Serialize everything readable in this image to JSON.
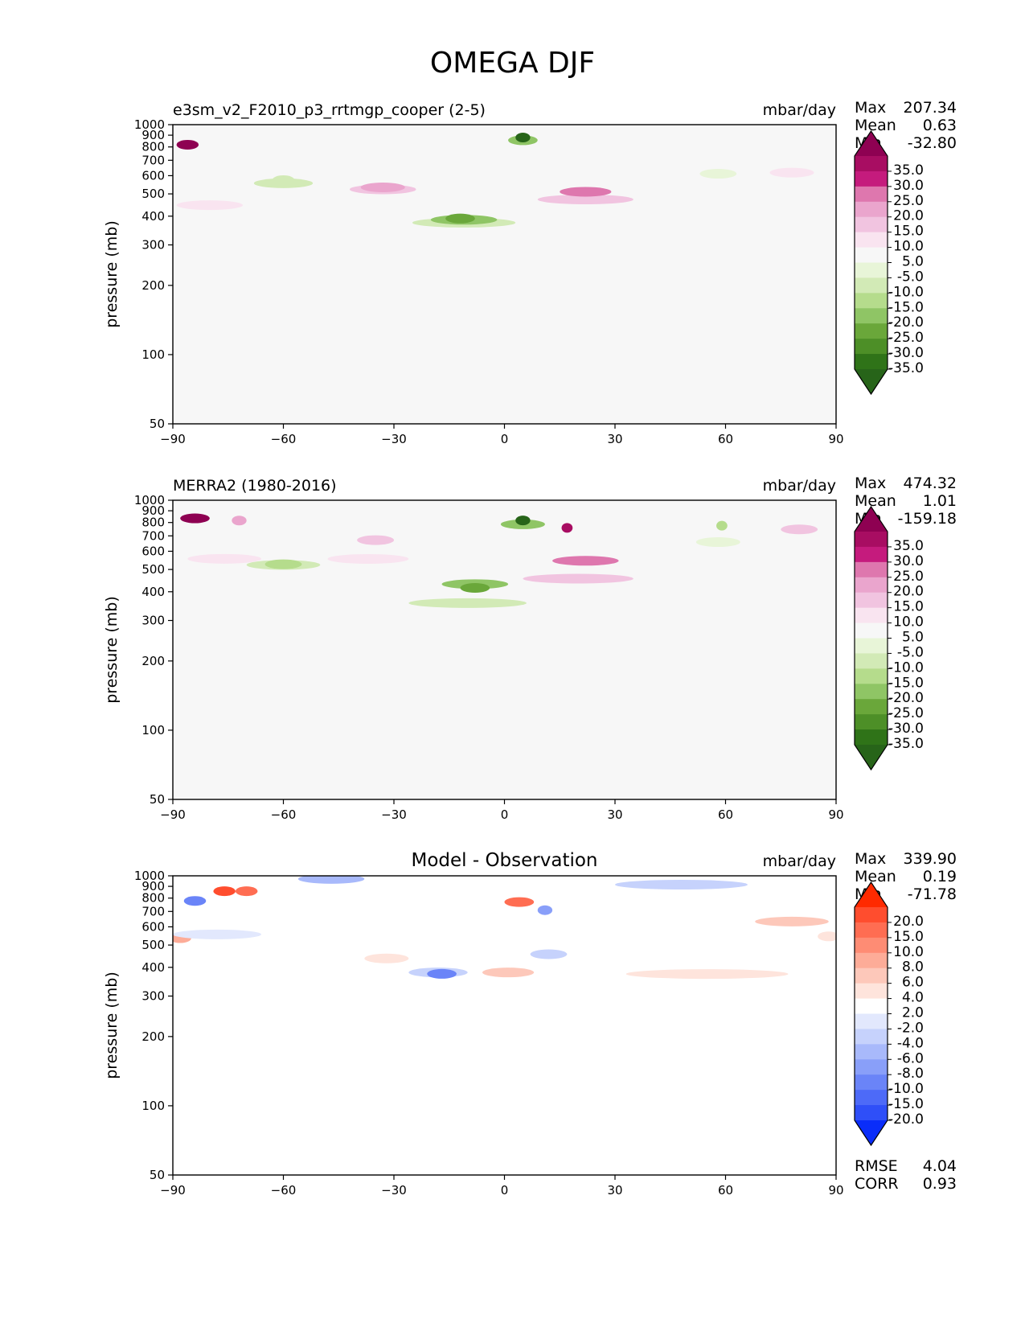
{
  "figure": {
    "title": "OMEGA DJF"
  },
  "chart_data": [
    {
      "type": "heatmap",
      "panel": "test",
      "title": "e3sm_v2_F2010_p3_rrtmgp_cooper (2-5)",
      "units": "mbar/day",
      "xlabel": "",
      "ylabel": "pressure (mb)",
      "xlim": [
        -90,
        90
      ],
      "ylim": [
        1000,
        50
      ],
      "xticks": [
        "−90",
        "−60",
        "−30",
        "0",
        "30",
        "60",
        "90"
      ],
      "yticks": [
        "50",
        "100",
        "200",
        "300",
        "400",
        "500",
        "600",
        "700",
        "800",
        "900",
        "1000"
      ],
      "stats": {
        "max_label": "Max",
        "max": "207.34",
        "mean_label": "Mean",
        "mean": "0.63",
        "min_label": "Min",
        "min": "-32.80"
      },
      "colorbar": {
        "labels": [
          "35.0",
          "30.0",
          "25.0",
          "20.0",
          "15.0",
          "10.0",
          "5.0",
          "-5.0",
          "-10.0",
          "-15.0",
          "-20.0",
          "-25.0",
          "-30.0",
          "-35.0"
        ],
        "colors": [
          "#8e0152",
          "#a80d62",
          "#c51b7d",
          "#de77ae",
          "#eaa5cd",
          "#f1c4e0",
          "#f9e4f0",
          "#f7f7f7",
          "#e8f5d8",
          "#d2eab6",
          "#b5dc8c",
          "#8fc565",
          "#6aa73a",
          "#4d8f27",
          "#2f7318",
          "#276419"
        ]
      },
      "features": [
        {
          "lat": -86,
          "p": 820,
          "value": 40,
          "w": 3,
          "h": 120
        },
        {
          "lat": -80,
          "p": 500,
          "value": 7,
          "w": 9,
          "h": 450
        },
        {
          "lat": -60,
          "p": 600,
          "value": -11,
          "w": 8,
          "h": 450
        },
        {
          "lat": -60,
          "p": 600,
          "value": -15,
          "w": 3,
          "h": 350
        },
        {
          "lat": -33,
          "p": 560,
          "value": 10,
          "w": 9,
          "h": 400
        },
        {
          "lat": -33,
          "p": 560,
          "value": 15,
          "w": 6,
          "h": 340
        },
        {
          "lat": -11,
          "p": 480,
          "value": -12,
          "w": 14,
          "h": 600
        },
        {
          "lat": -11,
          "p": 430,
          "value": -22,
          "w": 9,
          "h": 380
        },
        {
          "lat": -12,
          "p": 400,
          "value": -30,
          "w": 4,
          "h": 170
        },
        {
          "lat": 5,
          "p": 860,
          "value": -25,
          "w": 4,
          "h": 180
        },
        {
          "lat": 5,
          "p": 880,
          "value": -36,
          "w": 2,
          "h": 90
        },
        {
          "lat": 22,
          "p": 560,
          "value": 14,
          "w": 13,
          "h": 600
        },
        {
          "lat": 22,
          "p": 560,
          "value": 23,
          "w": 7,
          "h": 460
        },
        {
          "lat": 58,
          "p": 650,
          "value": -10,
          "w": 5,
          "h": 440
        },
        {
          "lat": 78,
          "p": 650,
          "value": 8,
          "w": 6,
          "h": 400
        }
      ]
    },
    {
      "type": "heatmap",
      "panel": "reference",
      "title": "MERRA2 (1980-2016)",
      "units": "mbar/day",
      "xlabel": "",
      "ylabel": "pressure (mb)",
      "xlim": [
        -90,
        90
      ],
      "ylim": [
        1000,
        50
      ],
      "xticks": [
        "−90",
        "−60",
        "−30",
        "0",
        "30",
        "60",
        "90"
      ],
      "yticks": [
        "50",
        "100",
        "200",
        "300",
        "400",
        "500",
        "600",
        "700",
        "800",
        "900",
        "1000"
      ],
      "stats": {
        "max_label": "Max",
        "max": "474.32",
        "mean_label": "Mean",
        "mean": "1.01",
        "min_label": "Min",
        "min": "-159.18"
      },
      "colorbar": {
        "labels": [
          "35.0",
          "30.0",
          "25.0",
          "20.0",
          "15.0",
          "10.0",
          "5.0",
          "-5.0",
          "-10.0",
          "-15.0",
          "-20.0",
          "-25.0",
          "-30.0",
          "-35.0"
        ],
        "colors": [
          "#8e0152",
          "#a80d62",
          "#c51b7d",
          "#de77ae",
          "#eaa5cd",
          "#f1c4e0",
          "#f9e4f0",
          "#f7f7f7",
          "#e8f5d8",
          "#d2eab6",
          "#b5dc8c",
          "#8fc565",
          "#6aa73a",
          "#4d8f27",
          "#2f7318",
          "#276419"
        ]
      },
      "features": [
        {
          "lat": -84,
          "p": 840,
          "value": 40,
          "w": 4,
          "h": 200
        },
        {
          "lat": -76,
          "p": 600,
          "value": 8,
          "w": 10,
          "h": 450
        },
        {
          "lat": -72,
          "p": 820,
          "value": 18,
          "w": 2,
          "h": 160
        },
        {
          "lat": -60,
          "p": 580,
          "value": -12,
          "w": 10,
          "h": 500
        },
        {
          "lat": -60,
          "p": 560,
          "value": -17,
          "w": 5,
          "h": 380
        },
        {
          "lat": -37,
          "p": 620,
          "value": 9,
          "w": 11,
          "h": 550
        },
        {
          "lat": -35,
          "p": 700,
          "value": 14,
          "w": 5,
          "h": 400
        },
        {
          "lat": -10,
          "p": 500,
          "value": -14,
          "w": 16,
          "h": 700
        },
        {
          "lat": -8,
          "p": 480,
          "value": -22,
          "w": 9,
          "h": 420
        },
        {
          "lat": -8,
          "p": 430,
          "value": -30,
          "w": 4,
          "h": 220
        },
        {
          "lat": 5,
          "p": 800,
          "value": -24,
          "w": 6,
          "h": 300
        },
        {
          "lat": 5,
          "p": 820,
          "value": -38,
          "w": 2,
          "h": 150
        },
        {
          "lat": 20,
          "p": 560,
          "value": 13,
          "w": 15,
          "h": 650
        },
        {
          "lat": 22,
          "p": 600,
          "value": 23,
          "w": 9,
          "h": 500
        },
        {
          "lat": 17,
          "p": 760,
          "value": 32,
          "w": 1.5,
          "h": 100
        },
        {
          "lat": 58,
          "p": 700,
          "value": -9,
          "w": 6,
          "h": 480
        },
        {
          "lat": 59,
          "p": 780,
          "value": -18,
          "w": 1.5,
          "h": 180
        },
        {
          "lat": 80,
          "p": 780,
          "value": 10,
          "w": 5,
          "h": 450
        }
      ]
    },
    {
      "type": "heatmap",
      "panel": "difference",
      "title": "Model - Observation",
      "units": "mbar/day",
      "xlabel": "",
      "ylabel": "pressure (mb)",
      "xlim": [
        -90,
        90
      ],
      "ylim": [
        1000,
        50
      ],
      "xticks": [
        "−90",
        "−60",
        "−30",
        "0",
        "30",
        "60",
        "90"
      ],
      "yticks": [
        "50",
        "100",
        "200",
        "300",
        "400",
        "500",
        "600",
        "700",
        "800",
        "900",
        "1000"
      ],
      "stats": {
        "max_label": "Max",
        "max": "339.90",
        "mean_label": "Mean",
        "mean": "0.19",
        "min_label": "Min",
        "min": "-71.78"
      },
      "extra_stats": {
        "rmse_label": "RMSE",
        "rmse": "4.04",
        "corr_label": "CORR",
        "corr": "0.93"
      },
      "colorbar": {
        "labels": [
          "20.0",
          "15.0",
          "10.0",
          "8.0",
          "6.0",
          "4.0",
          "2.0",
          "-2.0",
          "-4.0",
          "-6.0",
          "-8.0",
          "-10.0",
          "-15.0",
          "-20.0"
        ],
        "colors": [
          "#ff2a00",
          "#ff4d2e",
          "#ff6d52",
          "#fe8c74",
          "#fdac98",
          "#fdc8ba",
          "#fee4dc",
          "#ffffff",
          "#e2e8fd",
          "#c6d2fc",
          "#a8b9fb",
          "#899ff9",
          "#6a84f8",
          "#4d6af8",
          "#2f4ff8",
          "#0a2df9"
        ]
      },
      "features": [
        {
          "lat": -88,
          "p": 550,
          "value": 7,
          "w": 3,
          "h": 250
        },
        {
          "lat": -78,
          "p": 600,
          "value": -3,
          "w": 12,
          "h": 450
        },
        {
          "lat": -84,
          "p": 780,
          "value": -14,
          "w": 3,
          "h": 120
        },
        {
          "lat": -76,
          "p": 860,
          "value": 16,
          "w": 3,
          "h": 140
        },
        {
          "lat": -70,
          "p": 860,
          "value": 12,
          "w": 3,
          "h": 140
        },
        {
          "lat": -47,
          "p": 970,
          "value": -7,
          "w": 9,
          "h": 70
        },
        {
          "lat": -32,
          "p": 560,
          "value": 3,
          "w": 6,
          "h": 700
        },
        {
          "lat": -18,
          "p": 500,
          "value": -6,
          "w": 8,
          "h": 650
        },
        {
          "lat": -17,
          "p": 400,
          "value": -11,
          "w": 4,
          "h": 280
        },
        {
          "lat": 1,
          "p": 500,
          "value": 5,
          "w": 7,
          "h": 650
        },
        {
          "lat": 4,
          "p": 780,
          "value": 11,
          "w": 4,
          "h": 260
        },
        {
          "lat": 12,
          "p": 560,
          "value": -5,
          "w": 5,
          "h": 650
        },
        {
          "lat": 11,
          "p": 720,
          "value": -9,
          "w": 2,
          "h": 250
        },
        {
          "lat": 55,
          "p": 450,
          "value": 3,
          "w": 22,
          "h": 500
        },
        {
          "lat": 48,
          "p": 920,
          "value": -6,
          "w": 18,
          "h": 180
        },
        {
          "lat": 78,
          "p": 700,
          "value": 4,
          "w": 10,
          "h": 600
        },
        {
          "lat": 88,
          "p": 600,
          "value": 3,
          "w": 3,
          "h": 500
        }
      ]
    }
  ]
}
